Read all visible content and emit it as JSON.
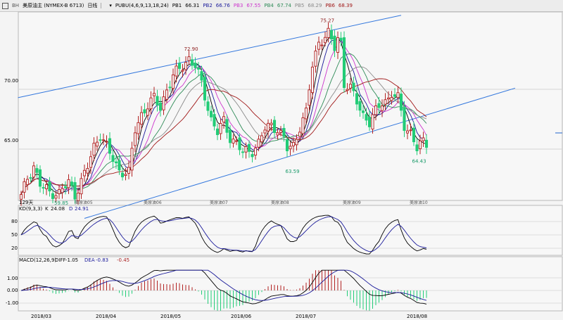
{
  "header": {
    "code": "BH",
    "instrument": "美原油主 (NYMEX-B 6713)",
    "period": "日线",
    "icons": [
      "square-icon",
      "arrow-icon"
    ]
  },
  "main_indicator": {
    "label": "PUBU(4,6,9,13,18,24)",
    "lines": [
      {
        "name": "PB1",
        "value": "66.31",
        "color": "#000000"
      },
      {
        "name": "PB2",
        "value": "66.76",
        "color": "#1a1a9a"
      },
      {
        "name": "PB3",
        "value": "67.55",
        "color": "#cc33cc"
      },
      {
        "name": "PB4",
        "value": "67.74",
        "color": "#2e8b57"
      },
      {
        "name": "PB5",
        "value": "68.29",
        "color": "#8a8a8a"
      },
      {
        "name": "PB6",
        "value": "68.39",
        "color": "#a01818"
      }
    ],
    "bar_count": "129天"
  },
  "kd": {
    "label": "KD(9,3,3)",
    "k_name": "K",
    "k": "24.08",
    "d_name": "D",
    "d": "24.91",
    "ticks": [
      "80",
      "50",
      "20"
    ]
  },
  "macd": {
    "label": "MACD(12,26,9)",
    "diff_name": "DIFF",
    "diff": "-1.05",
    "dea_name": "DEA",
    "dea": "-0.83",
    "macd_value": "-0.45",
    "ticks": [
      "1.00",
      "0.00",
      "-1.00"
    ]
  },
  "contract_labels": [
    "美原油05",
    "美原油06",
    "美原油07",
    "美原油08",
    "美原油09",
    "美原油10"
  ],
  "chart_data": {
    "type": "candlestick",
    "y_ticks": [
      "70.00",
      "65.00"
    ],
    "ylim": [
      60.7,
      76.3
    ],
    "date_labels": [
      "2018/03",
      "2018/04",
      "2018/05",
      "2018/06",
      "2018/07",
      "2018/08"
    ],
    "annotations": [
      {
        "text": "72.90",
        "bar": 53,
        "price": 72.9,
        "pos": "above"
      },
      {
        "text": "75.27",
        "bar": 96,
        "price": 75.27,
        "pos": "above"
      },
      {
        "text": "63.59",
        "bar": 85,
        "price": 63.59,
        "pos": "below"
      },
      {
        "text": "64.43",
        "bar": 125,
        "price": 64.43,
        "pos": "below"
      },
      {
        "text": "59.85",
        "bar": 12,
        "price": 60.95,
        "pos": "below"
      }
    ],
    "key_closes": [
      [
        0,
        61.0
      ],
      [
        2,
        62.6
      ],
      [
        4,
        63.6
      ],
      [
        6,
        62.0
      ],
      [
        9,
        61.4
      ],
      [
        12,
        61.3
      ],
      [
        15,
        62.2
      ],
      [
        17,
        61.2
      ],
      [
        19,
        62.3
      ],
      [
        21,
        63.5
      ],
      [
        23,
        65.2
      ],
      [
        25,
        66.3
      ],
      [
        28,
        64.6
      ],
      [
        31,
        63.2
      ],
      [
        34,
        63.0
      ],
      [
        36,
        66.6
      ],
      [
        38,
        67.9
      ],
      [
        40,
        68.7
      ],
      [
        42,
        69.2
      ],
      [
        44,
        68.5
      ],
      [
        46,
        70.0
      ],
      [
        48,
        71.1
      ],
      [
        50,
        71.7
      ],
      [
        52,
        72.3
      ],
      [
        53,
        72.6
      ],
      [
        55,
        71.9
      ],
      [
        57,
        70.5
      ],
      [
        60,
        67.5
      ],
      [
        62,
        66.4
      ],
      [
        64,
        67.3
      ],
      [
        66,
        66.0
      ],
      [
        68,
        65.5
      ],
      [
        70,
        64.7
      ],
      [
        73,
        64.9
      ],
      [
        75,
        65.5
      ],
      [
        77,
        66.7
      ],
      [
        79,
        67.0
      ],
      [
        81,
        66.7
      ],
      [
        83,
        65.8
      ],
      [
        84,
        65.0
      ],
      [
        86,
        65.3
      ],
      [
        88,
        66.9
      ],
      [
        90,
        68.0
      ],
      [
        92,
        72.0
      ],
      [
        94,
        74.0
      ],
      [
        95,
        74.2
      ],
      [
        97,
        74.6
      ],
      [
        99,
        73.5
      ],
      [
        100,
        74.3
      ],
      [
        101,
        74.0
      ],
      [
        102,
        70.5
      ],
      [
        104,
        70.0
      ],
      [
        106,
        69.0
      ],
      [
        108,
        67.9
      ],
      [
        110,
        67.2
      ],
      [
        112,
        68.1
      ],
      [
        114,
        69.0
      ],
      [
        116,
        69.2
      ],
      [
        117,
        69.6
      ],
      [
        119,
        69.2
      ],
      [
        121,
        67.0
      ],
      [
        123,
        66.4
      ],
      [
        125,
        65.0
      ],
      [
        127,
        65.6
      ],
      [
        128,
        65.5
      ]
    ],
    "upper_trendline": [
      [
        -1,
        69.3
      ],
      [
        120,
        76.2
      ]
    ],
    "lower_trendline": [
      [
        20,
        59.2
      ],
      [
        156,
        70.1
      ]
    ]
  }
}
